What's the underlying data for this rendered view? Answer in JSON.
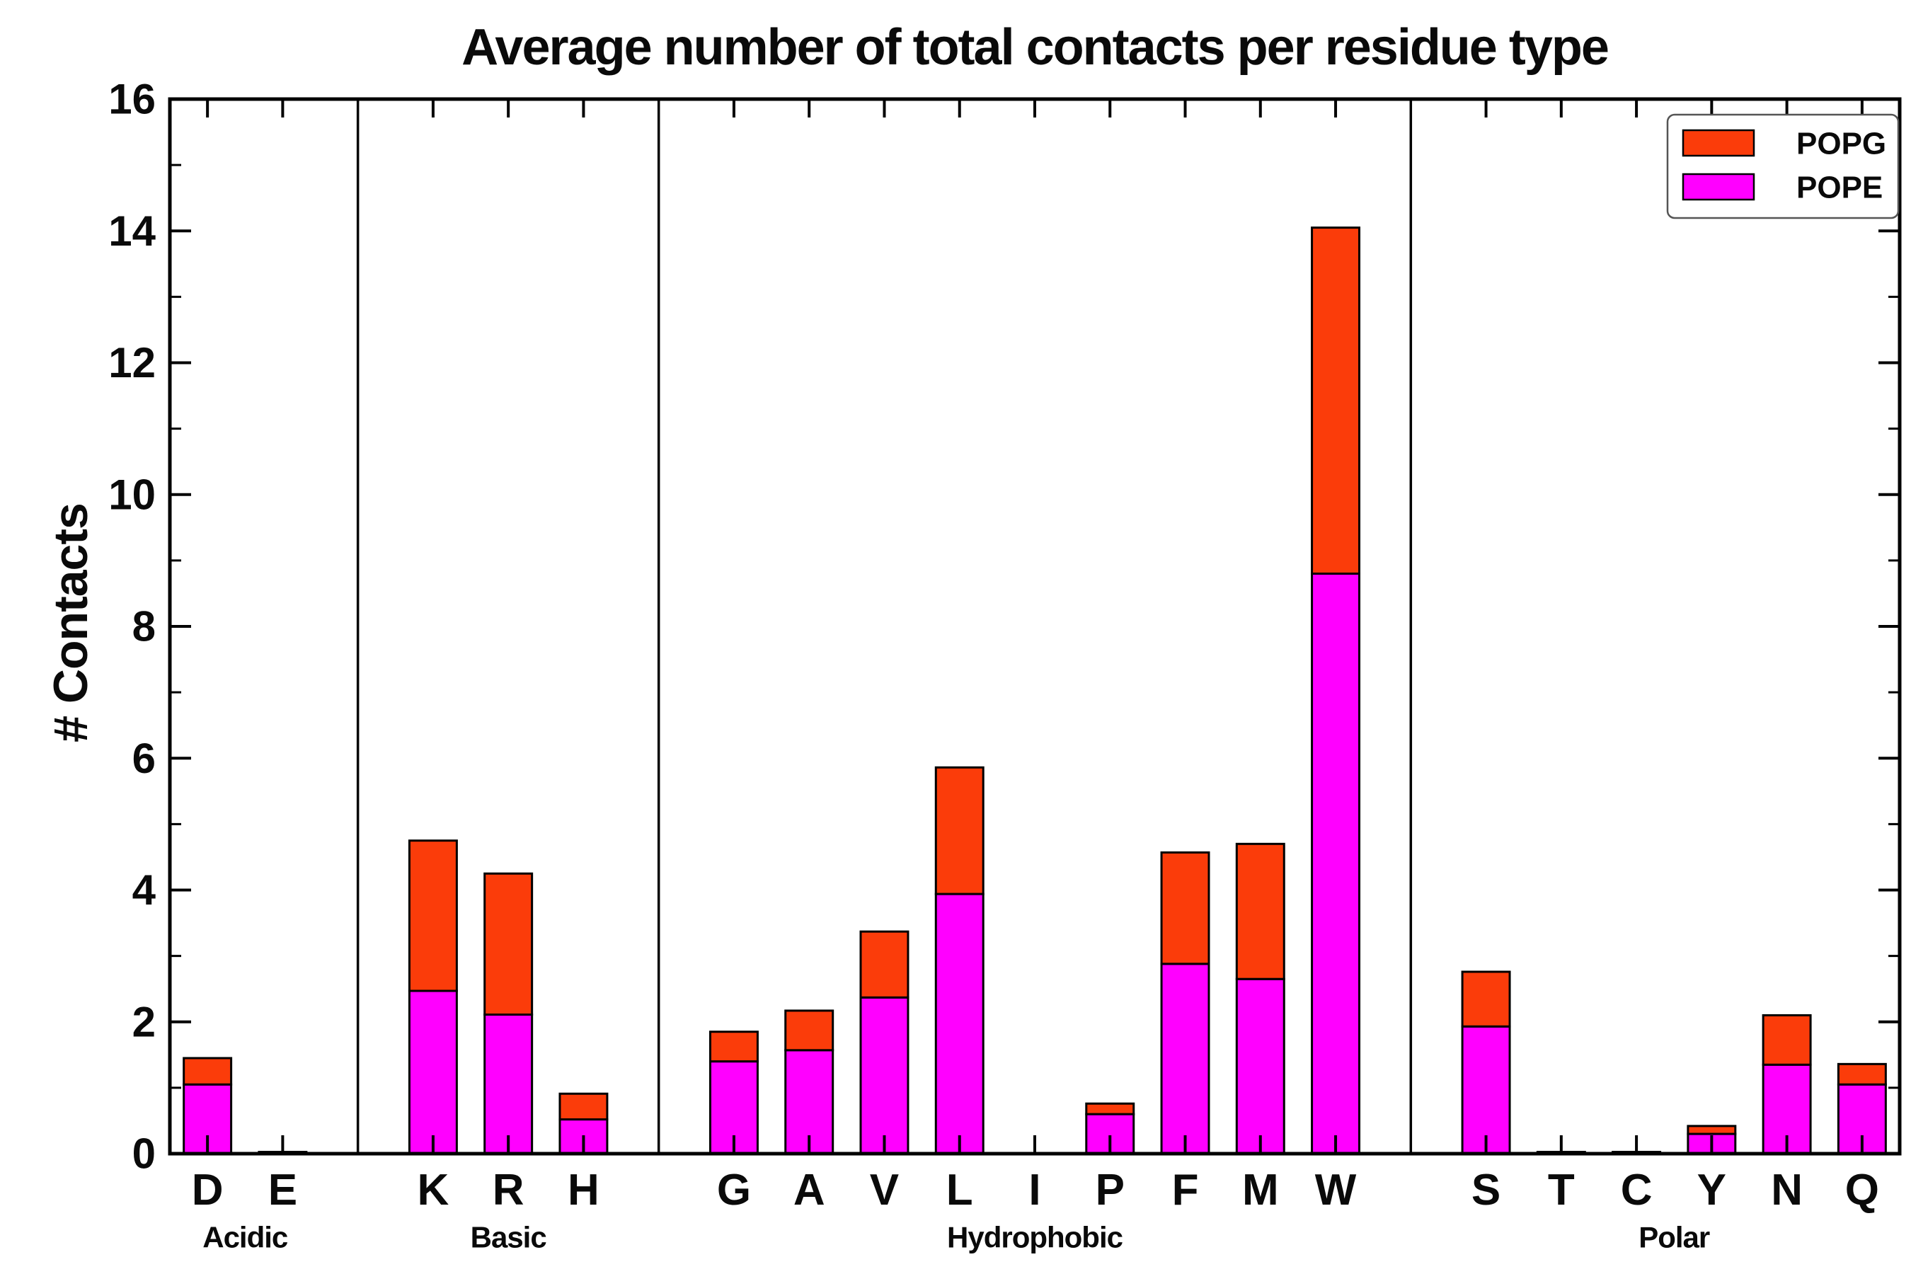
{
  "chart_data": {
    "type": "bar",
    "stacked": true,
    "title": "Average number of total contacts per residue type",
    "xlabel": "",
    "ylabel": "# Contacts",
    "ylim": [
      0,
      16
    ],
    "yticks": [
      0,
      2,
      4,
      6,
      8,
      10,
      12,
      14,
      16
    ],
    "ytick_minor": [
      1,
      3,
      5,
      7,
      9,
      11,
      13,
      15
    ],
    "grid": false,
    "legend_position": "upper right",
    "legend_order": [
      "POPG",
      "POPE"
    ],
    "series": [
      {
        "name": "POPE",
        "color": "#FF00FF"
      },
      {
        "name": "POPG",
        "color": "#FB3C0A"
      }
    ],
    "edge_color": "#000000",
    "slot_count": 23,
    "divider_slots": [
      2.5,
      6.5,
      16.5
    ],
    "groups": [
      {
        "label": "Acidic",
        "center_slot": 1.0
      },
      {
        "label": "Basic",
        "center_slot": 4.5
      },
      {
        "label": "Hydrophobic",
        "center_slot": 11.5
      },
      {
        "label": "Polar",
        "center_slot": 20.0
      }
    ],
    "categories": [
      {
        "label": "D",
        "slot": 0.5,
        "group": "Acidic",
        "values": {
          "POPE": 1.05,
          "POPG": 0.4
        }
      },
      {
        "label": "E",
        "slot": 1.5,
        "group": "Acidic",
        "values": {
          "POPE": 0.02,
          "POPG": 0.0
        }
      },
      {
        "label": "K",
        "slot": 3.5,
        "group": "Basic",
        "values": {
          "POPE": 2.47,
          "POPG": 2.28
        }
      },
      {
        "label": "R",
        "slot": 4.5,
        "group": "Basic",
        "values": {
          "POPE": 2.11,
          "POPG": 2.14
        }
      },
      {
        "label": "H",
        "slot": 5.5,
        "group": "Basic",
        "values": {
          "POPE": 0.52,
          "POPG": 0.39
        }
      },
      {
        "label": "G",
        "slot": 7.5,
        "group": "Hydrophobic",
        "values": {
          "POPE": 1.4,
          "POPG": 0.45
        }
      },
      {
        "label": "A",
        "slot": 8.5,
        "group": "Hydrophobic",
        "values": {
          "POPE": 1.57,
          "POPG": 0.6
        }
      },
      {
        "label": "V",
        "slot": 9.5,
        "group": "Hydrophobic",
        "values": {
          "POPE": 2.37,
          "POPG": 1.0
        }
      },
      {
        "label": "L",
        "slot": 10.5,
        "group": "Hydrophobic",
        "values": {
          "POPE": 3.94,
          "POPG": 1.92
        }
      },
      {
        "label": "I",
        "slot": 11.5,
        "group": "Hydrophobic",
        "values": {
          "POPE": 0.0,
          "POPG": 0.0
        }
      },
      {
        "label": "P",
        "slot": 12.5,
        "group": "Hydrophobic",
        "values": {
          "POPE": 0.6,
          "POPG": 0.16
        }
      },
      {
        "label": "F",
        "slot": 13.5,
        "group": "Hydrophobic",
        "values": {
          "POPE": 2.88,
          "POPG": 1.69
        }
      },
      {
        "label": "M",
        "slot": 14.5,
        "group": "Hydrophobic",
        "values": {
          "POPE": 2.65,
          "POPG": 2.05
        }
      },
      {
        "label": "W",
        "slot": 15.5,
        "group": "Hydrophobic",
        "values": {
          "POPE": 8.8,
          "POPG": 5.25
        }
      },
      {
        "label": "S",
        "slot": 17.5,
        "group": "Polar",
        "values": {
          "POPE": 1.93,
          "POPG": 0.83
        }
      },
      {
        "label": "T",
        "slot": 18.5,
        "group": "Polar",
        "values": {
          "POPE": 0.02,
          "POPG": 0.0
        }
      },
      {
        "label": "C",
        "slot": 19.5,
        "group": "Polar",
        "values": {
          "POPE": 0.02,
          "POPG": 0.0
        }
      },
      {
        "label": "Y",
        "slot": 20.5,
        "group": "Polar",
        "values": {
          "POPE": 0.3,
          "POPG": 0.12
        }
      },
      {
        "label": "N",
        "slot": 21.5,
        "group": "Polar",
        "values": {
          "POPE": 1.35,
          "POPG": 0.75
        }
      },
      {
        "label": "Q",
        "slot": 22.5,
        "group": "Polar",
        "values": {
          "POPE": 1.05,
          "POPG": 0.31
        }
      }
    ]
  }
}
